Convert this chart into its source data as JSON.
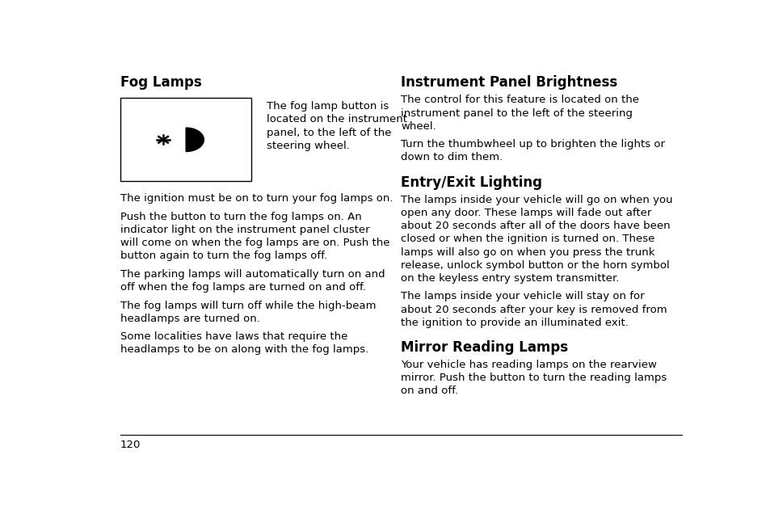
{
  "bg_color": "#ffffff",
  "text_color": "#000000",
  "page_number": "120",
  "section1_title": "Fog Lamps",
  "section1_body": [
    "The ignition must be on to turn your fog lamps on.",
    "Push the button to turn the fog lamps on. An indicator light on the instrument panel cluster will come on when the fog lamps are on. Push the button again to turn the fog lamps off.",
    "The parking lamps will automatically turn on and off when the fog lamps are turned on and off.",
    "The fog lamps will turn off while the high-beam headlamps are turned on.",
    "Some localities have laws that require the headlamps to be on along with the fog lamps."
  ],
  "image_caption": "The fog lamp button is located on the instrument panel, to the left of the steering wheel.",
  "section2_title": "Instrument Panel Brightness",
  "section2_body": [
    "The control for this feature is located on the instrument panel to the left of the steering wheel.",
    "Turn the thumbwheel up to brighten the lights or down to dim them."
  ],
  "section3_title": "Entry/Exit Lighting",
  "section3_body": [
    "The lamps inside your vehicle will go on when you open any door. These lamps will fade out after about 20 seconds after all of the doors have been closed or when the ignition is turned on. These lamps will also go on when you press the trunk release, unlock symbol button or the horn symbol on the keyless entry system transmitter.",
    "The lamps inside your vehicle will stay on for about 20 seconds after your key is removed from the ignition to provide an illuminated exit."
  ],
  "section4_title": "Mirror Reading Lamps",
  "section4_body": [
    "Your vehicle has reading lamps on the rearview mirror. Push the button to turn the reading lamps on and off."
  ],
  "font_size_title": 12,
  "font_size_body": 9.5,
  "font_size_page": 9.5
}
